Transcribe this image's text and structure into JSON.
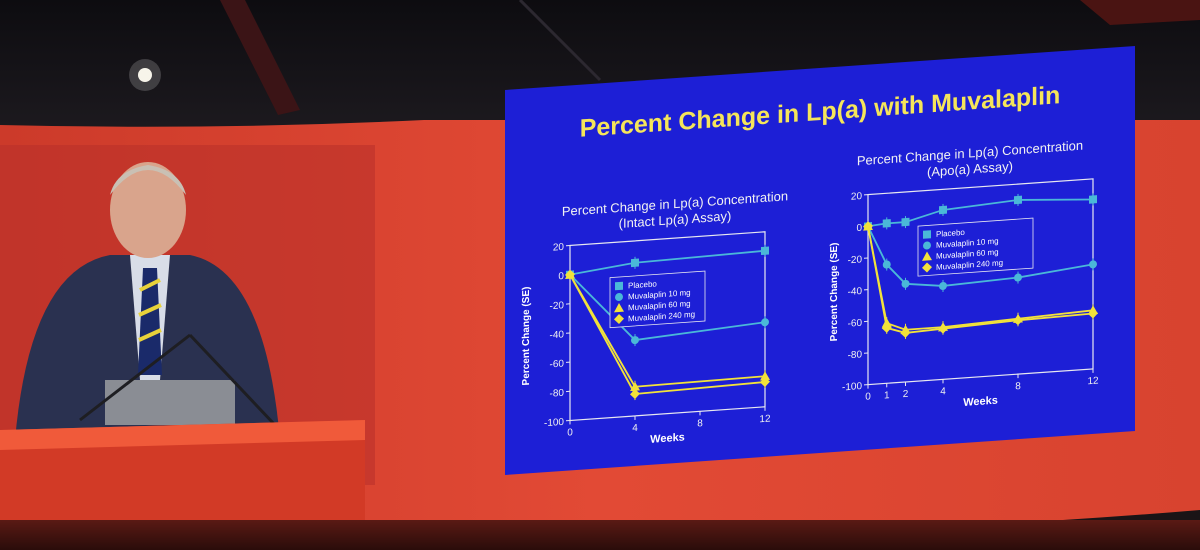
{
  "slide": {
    "title": "Percent Change in Lp(a) with Muvalaplin"
  },
  "colors": {
    "slide_bg": "#1d1fd6",
    "title": "#f5e55a",
    "placebo": "#4ab8d8",
    "dose10": "#4ab8d8",
    "dose60": "#f2e23a",
    "dose240": "#f2e23a",
    "screen_red": "#e24a35"
  },
  "chart_data": [
    {
      "type": "line",
      "title": "Percent Change in Lp(a) Concentration",
      "subtitle": "(Intact Lp(a) Assay)",
      "xlabel": "Weeks",
      "ylabel": "Percent Change (SE)",
      "xticks": [
        0,
        4,
        8,
        12
      ],
      "yticks": [
        20,
        0,
        -20,
        -40,
        -60,
        -80,
        -100
      ],
      "xlim": [
        0,
        12
      ],
      "ylim": [
        -100,
        20
      ],
      "legend": "inside-middle-right",
      "series": [
        {
          "name": "Placebo",
          "marker": "square",
          "x": [
            0,
            4,
            12
          ],
          "y": [
            0,
            5,
            7
          ]
        },
        {
          "name": "Muvalaplin 10 mg",
          "marker": "circle",
          "x": [
            0,
            4,
            12
          ],
          "y": [
            0,
            -48,
            -42
          ]
        },
        {
          "name": "Muvalaplin 60 mg",
          "marker": "triangle",
          "x": [
            0,
            4,
            12
          ],
          "y": [
            0,
            -80,
            -79
          ]
        },
        {
          "name": "Muvalaplin 240 mg",
          "marker": "diamond",
          "x": [
            0,
            4,
            12
          ],
          "y": [
            0,
            -85,
            -83
          ]
        }
      ]
    },
    {
      "type": "line",
      "title": "Percent Change in Lp(a) Concentration",
      "subtitle": "(Apo(a) Assay)",
      "xlabel": "Weeks",
      "ylabel": "Percent Change (SE)",
      "xticks": [
        0,
        1,
        2,
        4,
        8,
        12
      ],
      "yticks": [
        20,
        0,
        -20,
        -40,
        -60,
        -80,
        -100
      ],
      "xlim": [
        0,
        12
      ],
      "ylim": [
        -100,
        20
      ],
      "legend": "inside-top-middle",
      "series": [
        {
          "name": "Placebo",
          "marker": "square",
          "x": [
            0,
            1,
            2,
            4,
            8,
            12
          ],
          "y": [
            0,
            1,
            1,
            7,
            10,
            7
          ]
        },
        {
          "name": "Muvalaplin 10 mg",
          "marker": "circle",
          "x": [
            0,
            1,
            2,
            4,
            8,
            12
          ],
          "y": [
            0,
            -25,
            -38,
            -41,
            -39,
            -34
          ]
        },
        {
          "name": "Muvalaplin 60 mg",
          "marker": "triangle",
          "x": [
            0,
            1,
            2,
            4,
            8,
            12
          ],
          "y": [
            0,
            -62,
            -67,
            -67,
            -65,
            -63
          ]
        },
        {
          "name": "Muvalaplin 240 mg",
          "marker": "diamond",
          "x": [
            0,
            1,
            2,
            4,
            8,
            12
          ],
          "y": [
            0,
            -65,
            -69,
            -68,
            -66,
            -65
          ]
        }
      ]
    }
  ]
}
